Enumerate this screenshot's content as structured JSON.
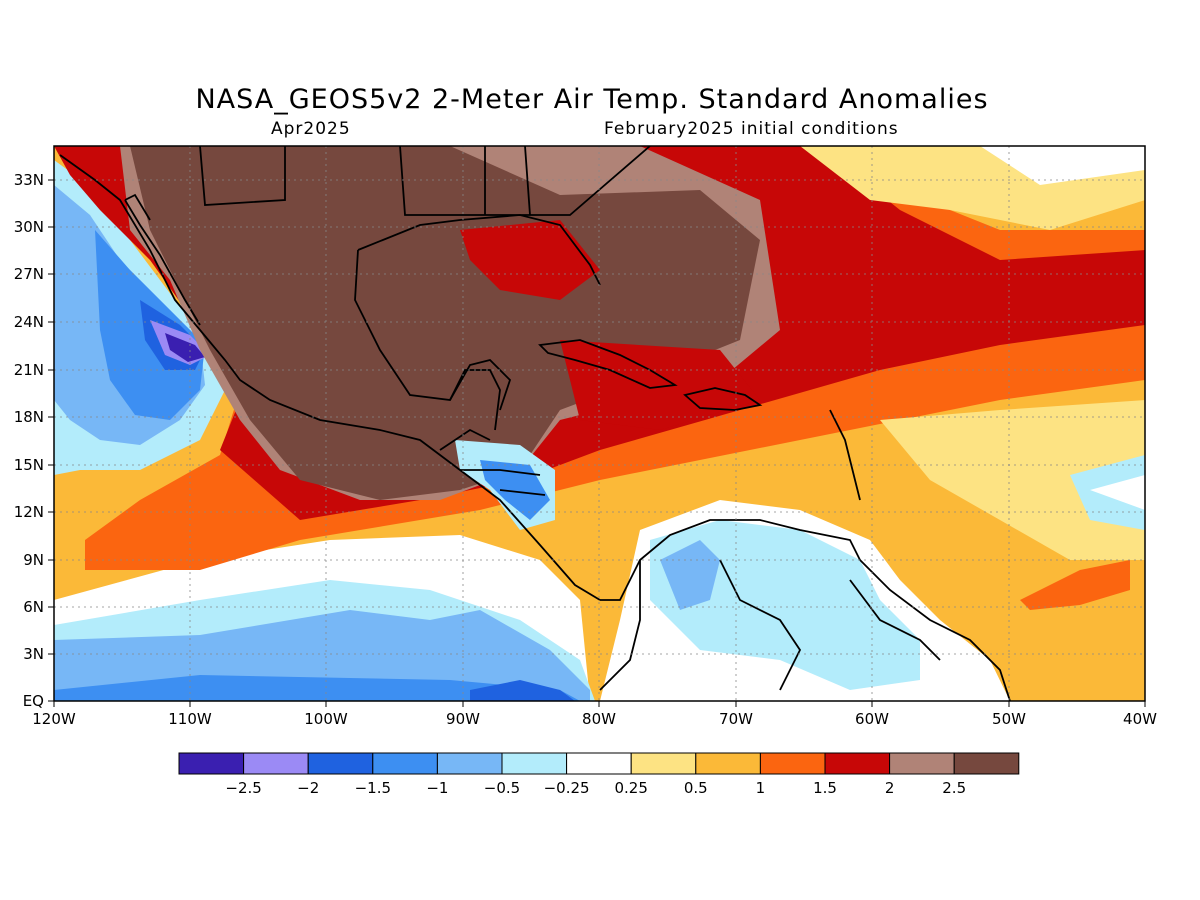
{
  "title": "NASA_GEOS5v2 2-Meter Air Temp. Standard Anomalies",
  "subtitle_left": "Apr2025",
  "subtitle_right": "February2025 initial conditions",
  "lat_labels": [
    "EQ",
    "3N",
    "6N",
    "9N",
    "12N",
    "15N",
    "18N",
    "21N",
    "24N",
    "27N",
    "30N",
    "33N"
  ],
  "lon_labels": [
    "120W",
    "110W",
    "100W",
    "90W",
    "80W",
    "70W",
    "60W",
    "50W",
    "40W"
  ],
  "colorbar": {
    "colors": [
      "#3a1fb0",
      "#9b8af5",
      "#1f62e0",
      "#3d8ff2",
      "#77b7f6",
      "#b3ecfb",
      "#ffffff",
      "#fde383",
      "#fbb938",
      "#fb6510",
      "#c70707",
      "#b08377",
      "#76483e"
    ],
    "labels": [
      "-2.5",
      "-2",
      "-1.5",
      "-1",
      "-0.5",
      "-0.25",
      "0.25",
      "0.5",
      "1",
      "1.5",
      "2",
      "2.5"
    ]
  },
  "map_colors": {
    "lt2_5": "#3a1fb0",
    "lt2": "#9b8af5",
    "lt1_5": "#1f62e0",
    "lt1": "#3d8ff2",
    "lt0_5": "#77b7f6",
    "lt0_25": "#b3ecfb",
    "neutral": "#ffffff",
    "gt0_25": "#fde383",
    "gt0_5": "#fbb938",
    "gt1": "#fb6510",
    "gt1_5": "#c70707",
    "gt2": "#b08377",
    "gt2_5": "#76483e"
  }
}
